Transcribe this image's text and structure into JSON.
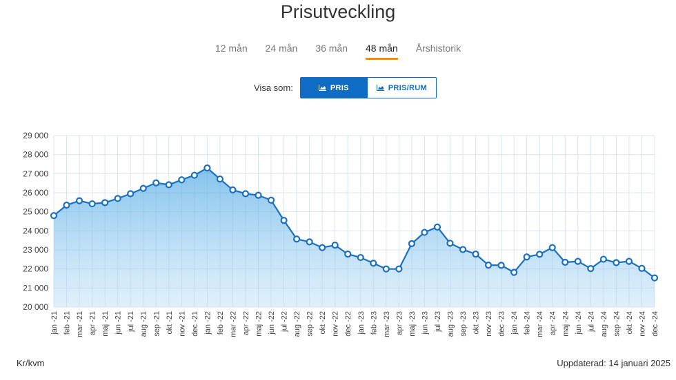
{
  "page": {
    "title": "Prisutveckling",
    "tabs": [
      {
        "label": "12 mån",
        "active": false
      },
      {
        "label": "24 mån",
        "active": false
      },
      {
        "label": "36 mån",
        "active": false
      },
      {
        "label": "48 mån",
        "active": true
      },
      {
        "label": "Årshistorik",
        "active": false
      }
    ],
    "view_label": "Visa som:",
    "view_buttons": [
      {
        "label": "PRIS",
        "icon": "area-chart-icon",
        "active": true
      },
      {
        "label": "PRIS/RUM",
        "icon": "area-chart-icon",
        "active": false
      }
    ],
    "unit_label": "Kr/kvm",
    "updated_label": "Uppdaterad: 14 januari 2025",
    "colors": {
      "accent": "#0f6cc4",
      "tab_underline": "#f28c00",
      "line": "#1a6fc0",
      "area": "#8cc6ee"
    }
  },
  "chart_data": {
    "type": "area",
    "categories": [
      "jan -21",
      "feb -21",
      "mar -21",
      "apr -21",
      "maj -21",
      "jun -21",
      "jul -21",
      "aug -21",
      "sep -21",
      "okt -21",
      "nov -21",
      "dec -21",
      "jan -22",
      "feb -22",
      "mar -22",
      "apr -22",
      "maj -22",
      "jun -22",
      "jul -22",
      "aug -22",
      "sep -22",
      "okt -22",
      "nov -22",
      "dec -22",
      "jan -23",
      "feb -23",
      "mar -23",
      "apr -23",
      "maj -23",
      "jun -23",
      "jul -23",
      "aug -23",
      "sep -23",
      "okt -23",
      "nov -23",
      "dec -23",
      "jan -24",
      "feb -24",
      "mar -24",
      "apr -24",
      "maj -24",
      "jun -24",
      "jul -24",
      "aug -24",
      "sep -24",
      "okt -24",
      "nov -24",
      "dec -24"
    ],
    "values": [
      24800,
      25350,
      25580,
      25420,
      25480,
      25700,
      25950,
      26230,
      26520,
      26420,
      26680,
      26920,
      27300,
      26720,
      26150,
      25950,
      25870,
      25610,
      24550,
      23570,
      23420,
      23120,
      23250,
      22780,
      22600,
      22300,
      22000,
      22000,
      23330,
      23920,
      24200,
      23350,
      23020,
      22780,
      22200,
      22190,
      21820,
      22630,
      22770,
      23120,
      22350,
      22400,
      22020,
      22510,
      22330,
      22400,
      22030,
      21530
    ],
    "ylim": [
      20000,
      29000
    ],
    "yticks": [
      20000,
      21000,
      22000,
      23000,
      24000,
      25000,
      26000,
      27000,
      28000,
      29000
    ],
    "ytick_labels": [
      "20 000",
      "21 000",
      "22 000",
      "23 000",
      "24 000",
      "25 000",
      "26 000",
      "27 000",
      "28 000",
      "29 000"
    ],
    "grid": true
  }
}
